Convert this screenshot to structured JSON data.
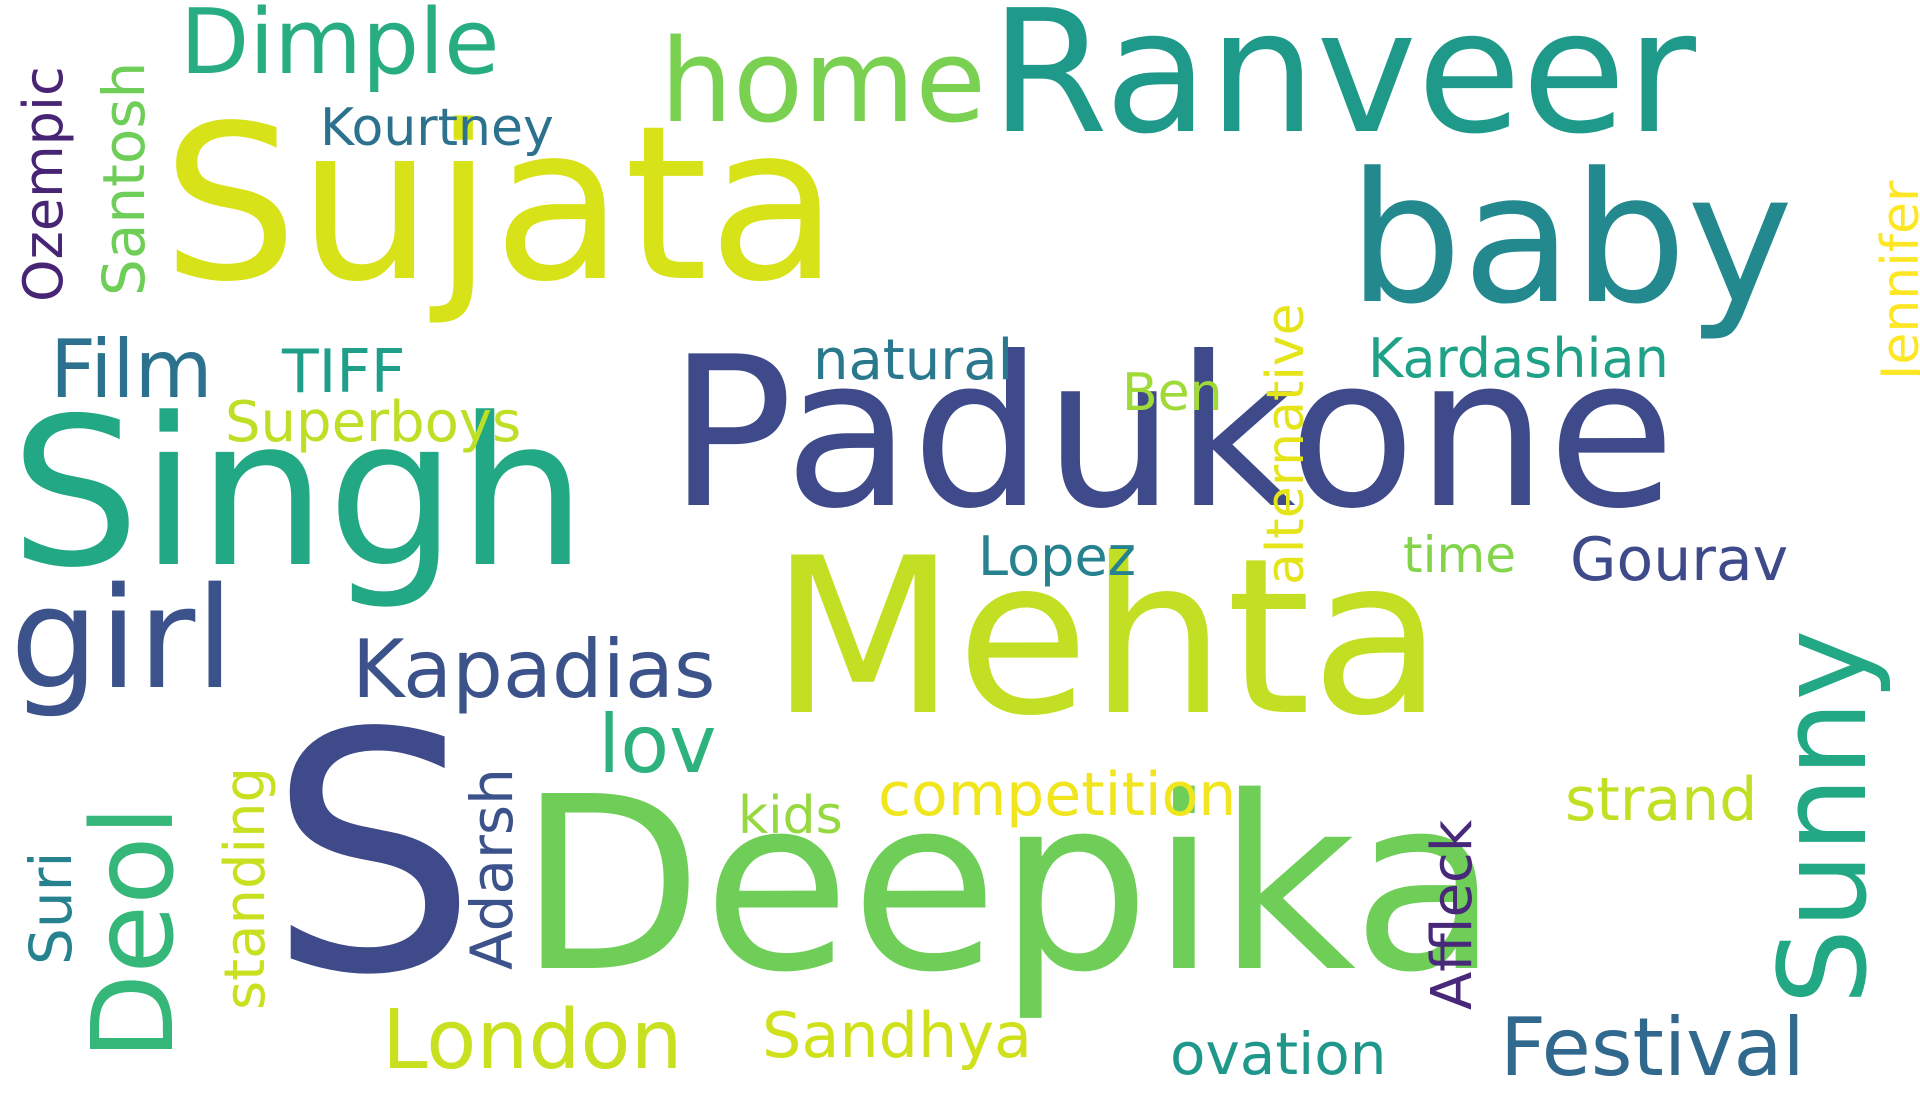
{
  "words": [
    {
      "text": "Sujata",
      "color": "#d8e219"
    },
    {
      "text": "Ranveer",
      "color": "#1f9a8a"
    },
    {
      "text": "baby",
      "color": "#23898e"
    },
    {
      "text": "Padukone",
      "color": "#3e4a89"
    },
    {
      "text": "Singh",
      "color": "#22a884"
    },
    {
      "text": "Mehta",
      "color": "#c2df23"
    },
    {
      "text": "S",
      "color": "#3e4a89"
    },
    {
      "text": "Deepika",
      "color": "#6ece58"
    },
    {
      "text": "Dimple",
      "color": "#27ad81"
    },
    {
      "text": "home",
      "color": "#7ad151"
    },
    {
      "text": "Kourtney",
      "color": "#2c728e"
    },
    {
      "text": "Santosh",
      "color": "#6ece58"
    },
    {
      "text": "Ozempic",
      "color": "#482475"
    },
    {
      "text": "Jennifer",
      "color": "#fde725"
    },
    {
      "text": "Film",
      "color": "#2c728e"
    },
    {
      "text": "TIFF",
      "color": "#1f9e89"
    },
    {
      "text": "Superboys",
      "color": "#bddf26"
    },
    {
      "text": "natural",
      "color": "#2a788e"
    },
    {
      "text": "Ben",
      "color": "#a0da39"
    },
    {
      "text": "alternative",
      "color": "#e5e419"
    },
    {
      "text": "Kardashian",
      "color": "#1fa187"
    },
    {
      "text": "girl",
      "color": "#3b528b"
    },
    {
      "text": "Kapadias",
      "color": "#3b528b"
    },
    {
      "text": "Lopez",
      "color": "#26828e"
    },
    {
      "text": "time",
      "color": "#84d44b"
    },
    {
      "text": "Gourav",
      "color": "#3e4a89"
    },
    {
      "text": "Sunny",
      "color": "#22a884"
    },
    {
      "text": "lov",
      "color": "#2db27d"
    },
    {
      "text": "Deol",
      "color": "#35b779"
    },
    {
      "text": "standing",
      "color": "#c8e020"
    },
    {
      "text": "Adarsh",
      "color": "#3b528b"
    },
    {
      "text": "kids",
      "color": "#95d840"
    },
    {
      "text": "competition",
      "color": "#f1e51d"
    },
    {
      "text": "strand",
      "color": "#c2df23"
    },
    {
      "text": "Affleck",
      "color": "#482878"
    },
    {
      "text": "Suri",
      "color": "#26828e"
    },
    {
      "text": "London",
      "color": "#c8e020"
    },
    {
      "text": "Sandhya",
      "color": "#d0e11c"
    },
    {
      "text": "ovation",
      "color": "#1f988b"
    },
    {
      "text": "Festival",
      "color": "#31688e"
    }
  ]
}
